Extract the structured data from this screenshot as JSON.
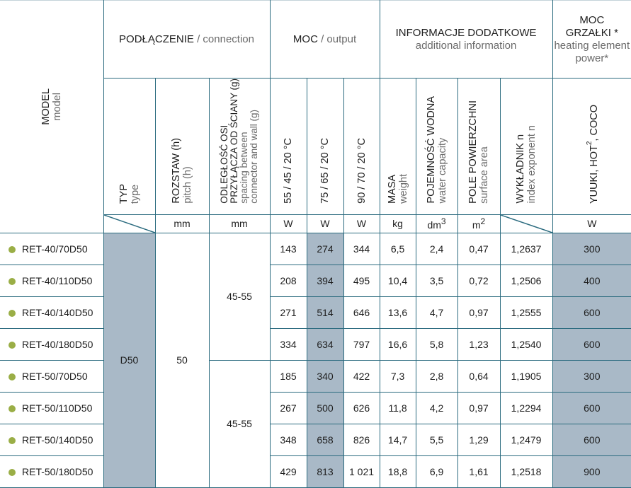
{
  "colors": {
    "border": "#2b6b7f",
    "highlight": "#a9b9c7",
    "bullet": "#9aae46"
  },
  "header": {
    "model": {
      "pl": "MODEL",
      "en": "model"
    },
    "connection": {
      "pl": "PODŁĄCZENIE",
      "en": "/ connection"
    },
    "output": {
      "pl": "MOC",
      "en": "/ output"
    },
    "additional": {
      "pl": "INFORMACJE DODATKOWE",
      "en": "additional information"
    },
    "heater": {
      "pl1": "MOC",
      "pl2": "GRZAŁKI *",
      "en": "heating element power*"
    },
    "columns": {
      "typ": {
        "pl": "TYP",
        "en": "type"
      },
      "rozstaw": {
        "pl": "ROZSTAW (h)",
        "en": "pitch (h)"
      },
      "odleglosc": {
        "pl1": "ODLEGŁOŚĆ OSI",
        "pl2": "PRZYŁĄCZA OD ŚCIANY (g)",
        "en1": "spacing between",
        "en2": "connector and wall  (g)"
      },
      "p55": "55 / 45 / 20 °C",
      "p75": "75 / 65 / 20 °C",
      "p90": "90 / 70 / 20 °C",
      "masa": {
        "pl": "MASA",
        "en": "weight"
      },
      "pojemnosc": {
        "pl": "POJEMNOŚĆ WODNA",
        "en": "water capacity"
      },
      "pole": {
        "pl": "POLE POWIERZCHNI",
        "en": "surface area"
      },
      "wykladnik": {
        "pl": "WYKŁADNIK n",
        "en": "index exponent n"
      },
      "grzalka": {
        "text": "YUUKI, HOT",
        "sup": "2",
        "tail": ", COCO"
      }
    },
    "units": {
      "rozstaw": "mm",
      "odleglosc": "mm",
      "p55": "W",
      "p75": "W",
      "p90": "W",
      "masa": "kg",
      "pojemnosc": "dm",
      "pojemnosc_sup": "3",
      "pole": "m",
      "pole_sup": "2",
      "grzalka": "W"
    }
  },
  "merged": {
    "typ": "D50",
    "rozstaw": "50",
    "odleglosc": [
      "45-55",
      "45-55"
    ]
  },
  "rows": [
    {
      "model": "RET-40/70D50",
      "p55": "143",
      "p75": "274",
      "p90": "344",
      "masa": "6,5",
      "pojemnosc": "2,4",
      "pole": "0,47",
      "wykladnik": "1,2637",
      "grzalka": "300"
    },
    {
      "model": "RET-40/110D50",
      "p55": "208",
      "p75": "394",
      "p90": "495",
      "masa": "10,4",
      "pojemnosc": "3,5",
      "pole": "0,72",
      "wykladnik": "1,2506",
      "grzalka": "400"
    },
    {
      "model": "RET-40/140D50",
      "p55": "271",
      "p75": "514",
      "p90": "646",
      "masa": "13,6",
      "pojemnosc": "4,7",
      "pole": "0,97",
      "wykladnik": "1,2555",
      "grzalka": "600"
    },
    {
      "model": "RET-40/180D50",
      "p55": "334",
      "p75": "634",
      "p90": "797",
      "masa": "16,6",
      "pojemnosc": "5,8",
      "pole": "1,23",
      "wykladnik": "1,2540",
      "grzalka": "600"
    },
    {
      "model": "RET-50/70D50",
      "p55": "185",
      "p75": "340",
      "p90": "422",
      "masa": "7,3",
      "pojemnosc": "2,8",
      "pole": "0,64",
      "wykladnik": "1,1905",
      "grzalka": "300"
    },
    {
      "model": "RET-50/110D50",
      "p55": "267",
      "p75": "500",
      "p90": "626",
      "masa": "11,8",
      "pojemnosc": "4,2",
      "pole": "0,97",
      "wykladnik": "1,2294",
      "grzalka": "600"
    },
    {
      "model": "RET-50/140D50",
      "p55": "348",
      "p75": "658",
      "p90": "826",
      "masa": "14,7",
      "pojemnosc": "5,5",
      "pole": "1,29",
      "wykladnik": "1,2479",
      "grzalka": "600"
    },
    {
      "model": "RET-50/180D50",
      "p55": "429",
      "p75": "813",
      "p90": "1 021",
      "masa": "18,8",
      "pojemnosc": "6,9",
      "pole": "1,61",
      "wykladnik": "1,2518",
      "grzalka": "900"
    }
  ]
}
